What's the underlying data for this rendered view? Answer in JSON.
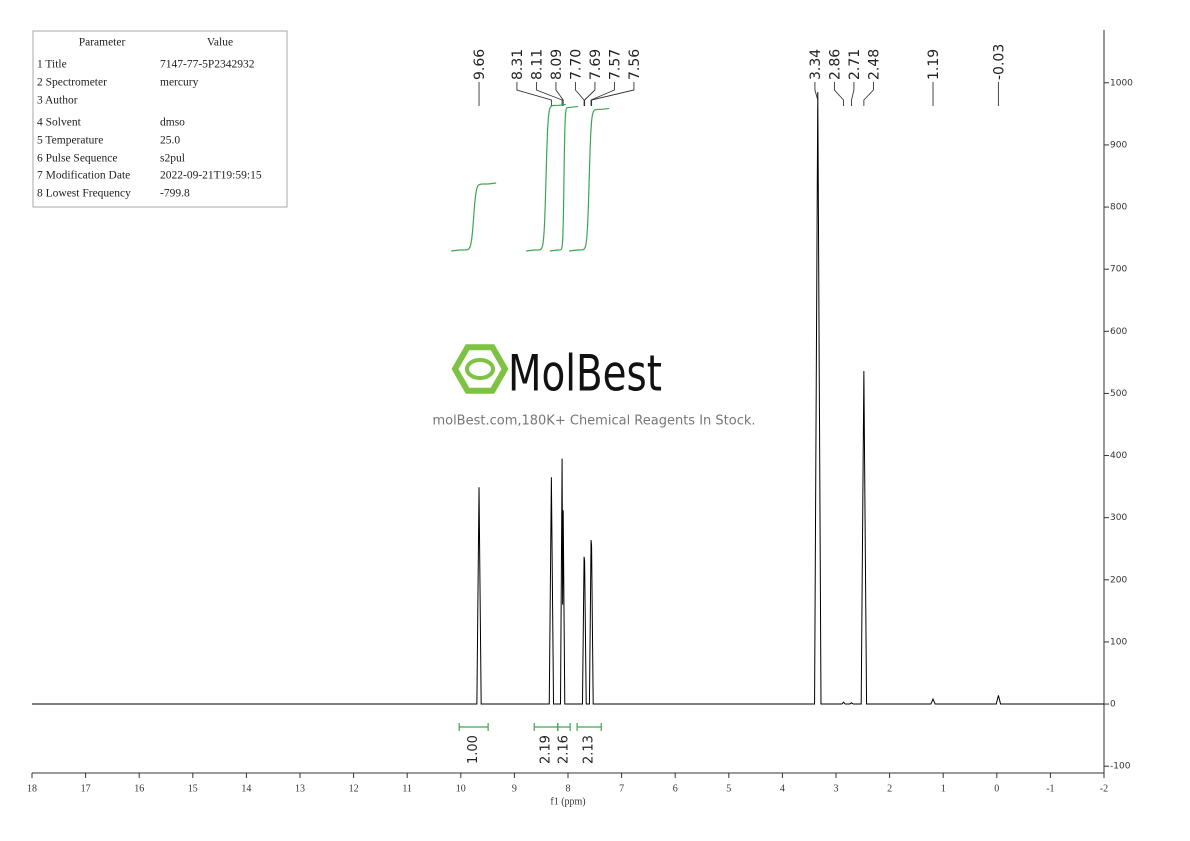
{
  "chart_data": {
    "type": "line",
    "xlabel": "f1 (ppm)",
    "xlim": [
      18,
      -2
    ],
    "ylim": [
      -111,
      1085
    ],
    "xticks": [
      18,
      17,
      16,
      15,
      14,
      13,
      12,
      11,
      10,
      9,
      8,
      7,
      6,
      5,
      4,
      3,
      2,
      1,
      0,
      -1,
      -2
    ],
    "yticks": [
      -100,
      0,
      100,
      200,
      300,
      400,
      500,
      600,
      700,
      800,
      900,
      1000
    ],
    "color": "#000000",
    "integral_color": "#3aa655",
    "x": [
      18,
      9.7,
      9.66,
      9.62,
      8.35,
      8.31,
      8.27,
      8.14,
      8.11,
      8.1,
      8.09,
      8.06,
      7.73,
      7.7,
      7.69,
      7.66,
      7.6,
      7.57,
      7.56,
      7.53,
      3.4,
      3.34,
      3.28,
      2.89,
      2.86,
      2.83,
      2.74,
      2.71,
      2.68,
      2.53,
      2.48,
      2.43,
      1.23,
      1.19,
      1.15,
      0.01,
      -0.03,
      -0.07,
      -2
    ],
    "values": [
      0,
      0,
      349,
      0,
      0,
      365,
      0,
      0,
      395,
      160,
      312,
      0,
      0,
      237,
      230,
      0,
      0,
      264,
      255,
      0,
      0,
      985,
      0,
      0,
      3,
      0,
      0,
      2,
      0,
      0,
      536,
      0,
      0,
      8,
      0,
      0,
      14,
      0,
      0
    ],
    "peak_labels": [
      9.66,
      8.31,
      8.11,
      8.09,
      {
        "value": 7.7,
        "label": "7.70"
      },
      7.69,
      7.57,
      7.56,
      3.34,
      2.86,
      2.71,
      2.48,
      1.19,
      -0.03
    ],
    "integrals": [
      {
        "from": 10.03,
        "to": 9.49,
        "value": 1.0,
        "label": "1.00"
      },
      {
        "from": 8.63,
        "to": 8.19,
        "value": 2.19,
        "label": "2.19"
      },
      {
        "from": 8.19,
        "to": 7.96,
        "value": 2.16,
        "label": "2.16"
      },
      {
        "from": 7.83,
        "to": 7.38,
        "value": 2.13,
        "label": "2.13"
      }
    ]
  },
  "parameters": {
    "header": [
      "Parameter",
      "Value"
    ],
    "rows": [
      [
        "1 Title",
        "7147-77-5P2342932"
      ],
      [
        "2 Spectrometer",
        "mercury"
      ],
      [
        "3 Author"
      ],
      [
        "4 Solvent",
        "dmso"
      ],
      [
        "5 Temperature",
        "25.0"
      ],
      [
        "6 Pulse Sequence",
        "s2pul"
      ],
      [
        "7 Modification Date",
        "2022-09-21T19:59:15"
      ],
      [
        "8 Lowest Frequency",
        "-799.8"
      ]
    ]
  },
  "watermark": {
    "brand": "MolBest",
    "tagline": "molBest.com,180K+ Chemical Reagents In Stock."
  }
}
